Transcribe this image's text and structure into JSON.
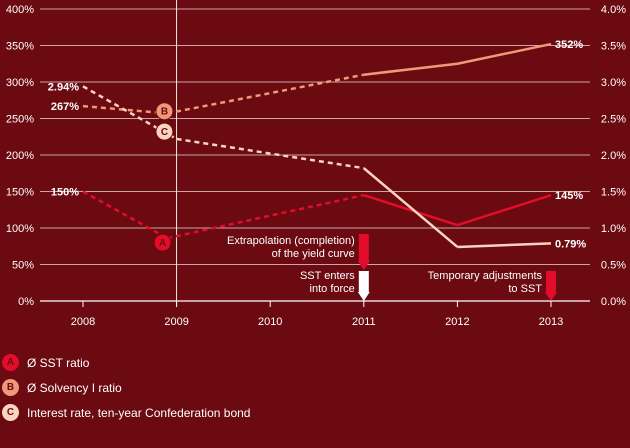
{
  "chart_data": {
    "type": "line",
    "x": [
      "2008",
      "2009",
      "2010",
      "2011",
      "2012",
      "2013"
    ],
    "y_left": {
      "ticks": [
        "0%",
        "50%",
        "100%",
        "150%",
        "200%",
        "250%",
        "300%",
        "350%",
        "400%"
      ],
      "ylim": [
        0,
        400
      ]
    },
    "y_right": {
      "ticks": [
        "0.0%",
        "0.5%",
        "1.0%",
        "1.5%",
        "2.0%",
        "2.5%",
        "3.0%",
        "3.5%",
        "4.0%"
      ],
      "ylim": [
        0,
        4
      ]
    },
    "grid": true,
    "series": [
      {
        "marker": "A",
        "name": "Ø SST ratio",
        "axis": "left",
        "color": "#e30d2b",
        "points": [
          [
            2008,
            150
          ],
          [
            2008.9,
            86
          ],
          [
            2011,
            145
          ],
          [
            2012,
            104
          ],
          [
            2013,
            145
          ]
        ],
        "dashed_until": 2011
      },
      {
        "marker": "B",
        "name": "Ø Solvency I ratio",
        "axis": "left",
        "color": "#f0987a",
        "points": [
          [
            2008,
            267
          ],
          [
            2008.9,
            257
          ],
          [
            2011,
            310
          ],
          [
            2012,
            325
          ],
          [
            2013,
            352
          ]
        ],
        "dashed_until": 2011
      },
      {
        "marker": "C",
        "name": "Interest rate, ten-year Confederation bond",
        "axis": "right",
        "color": "#f9d4bf",
        "points": [
          [
            2008,
            2.94
          ],
          [
            2009,
            2.22
          ],
          [
            2011,
            1.82
          ],
          [
            2012,
            0.74
          ],
          [
            2013,
            0.79
          ]
        ],
        "dashed_until": 2011
      }
    ],
    "data_labels": [
      {
        "text": "150%",
        "x": 2008,
        "y": 150,
        "axis": "left",
        "side": "left"
      },
      {
        "text": "267%",
        "x": 2008,
        "y": 267,
        "axis": "left",
        "side": "left"
      },
      {
        "text": "2.94%",
        "x": 2008,
        "y": 2.94,
        "axis": "right",
        "side": "left"
      },
      {
        "text": "352%",
        "x": 2013,
        "y": 352,
        "axis": "left",
        "side": "right"
      },
      {
        "text": "145%",
        "x": 2013,
        "y": 145,
        "axis": "left",
        "side": "right"
      },
      {
        "text": "0.79%",
        "x": 2013,
        "y": 0.79,
        "axis": "right",
        "side": "right"
      }
    ],
    "annotations": [
      {
        "lines": [
          "Extrapolation (completion)",
          "of the yield curve"
        ],
        "x": 2011
      },
      {
        "lines": [
          "SST enters",
          "into force"
        ],
        "x": 2011
      },
      {
        "lines": [
          "Temporary adjustments",
          "to SST"
        ],
        "x": 2013
      }
    ]
  },
  "legend": [
    {
      "marker": "A",
      "label": "Ø SST ratio",
      "color": "#e30d2b",
      "text_color": "#6b0a10"
    },
    {
      "marker": "B",
      "label": "Ø Solvency I ratio",
      "color": "#f0987a",
      "text_color": "#6b0a10"
    },
    {
      "marker": "C",
      "label": "Interest rate, ten-year Confederation bond",
      "color": "#f9d4bf",
      "text_color": "#6b0a10"
    }
  ]
}
